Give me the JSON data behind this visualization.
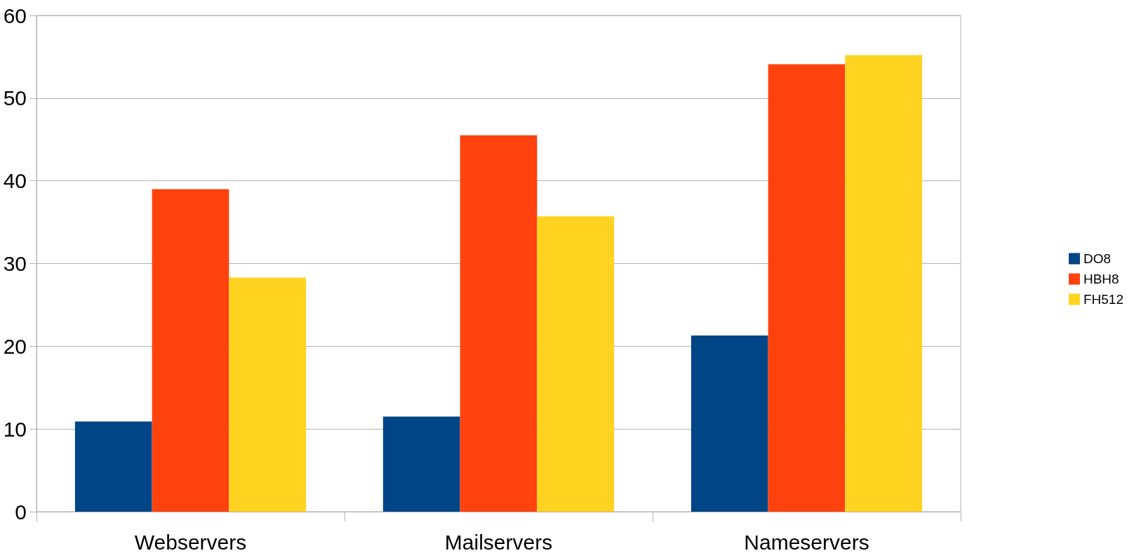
{
  "chart_data": {
    "type": "bar",
    "categories": [
      "Webservers",
      "Mailservers",
      "Nameservers"
    ],
    "series": [
      {
        "name": "DO8",
        "color": "#004586",
        "values": [
          10.9,
          11.5,
          21.3
        ]
      },
      {
        "name": "HBH8",
        "color": "#ff420e",
        "values": [
          39.0,
          45.5,
          54.1
        ]
      },
      {
        "name": "FH512",
        "color": "#ffd320",
        "values": [
          28.3,
          35.7,
          55.2
        ]
      }
    ],
    "ylim": [
      0,
      60
    ],
    "yticks": [
      0,
      10,
      20,
      30,
      40,
      50,
      60
    ],
    "grid": "y",
    "legend": "right"
  }
}
